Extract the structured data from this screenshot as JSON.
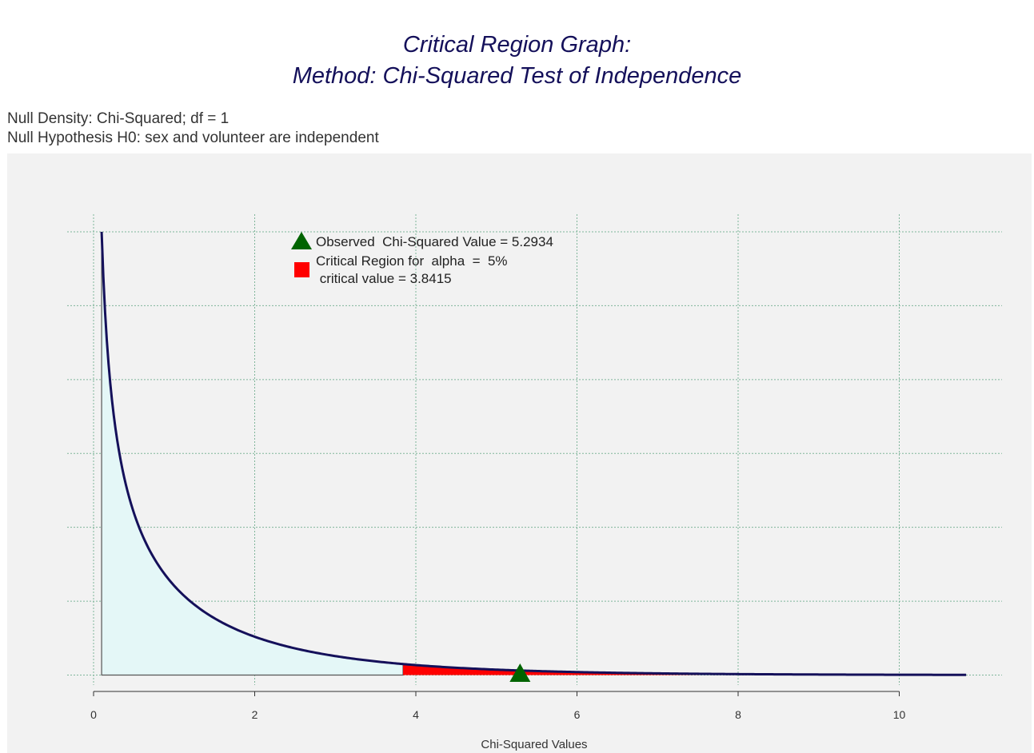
{
  "header": {
    "title_line1": "Critical Region Graph:",
    "title_line2": "Method: Chi-Squared Test of Independence",
    "subtitle_line1": "Null Density: Chi-Squared; df = 1",
    "subtitle_line2": "Null Hypothesis H0: sex and volunteer are independent"
  },
  "colors": {
    "title": "#14105a",
    "panel_background": "#f2f2f2",
    "curve": "#14105a",
    "acceptance_fill": "#e4f7f7",
    "critical_fill": "#ff0000",
    "observed_marker": "#006400",
    "grid": "#7fb59a"
  },
  "chart_data": {
    "type": "area",
    "distribution": "chi-squared",
    "df": 1,
    "x_range": [
      0.1,
      10.83
    ],
    "xlim": [
      0,
      11
    ],
    "x_ticks": [
      0,
      2,
      4,
      6,
      8,
      10
    ],
    "xlabel": "Chi-Squared Values",
    "ylabel": "",
    "grid": true,
    "critical_value": 3.8415,
    "observed_value": 5.2934,
    "alpha_percent": 5,
    "legend": {
      "position": "top-left",
      "observed_label": "Observed  Chi-Squared Value = 5.2934",
      "critical_label_line1": "Critical Region for  alpha  =  5%",
      "critical_label_line2": " critical value = 3.8415"
    }
  }
}
